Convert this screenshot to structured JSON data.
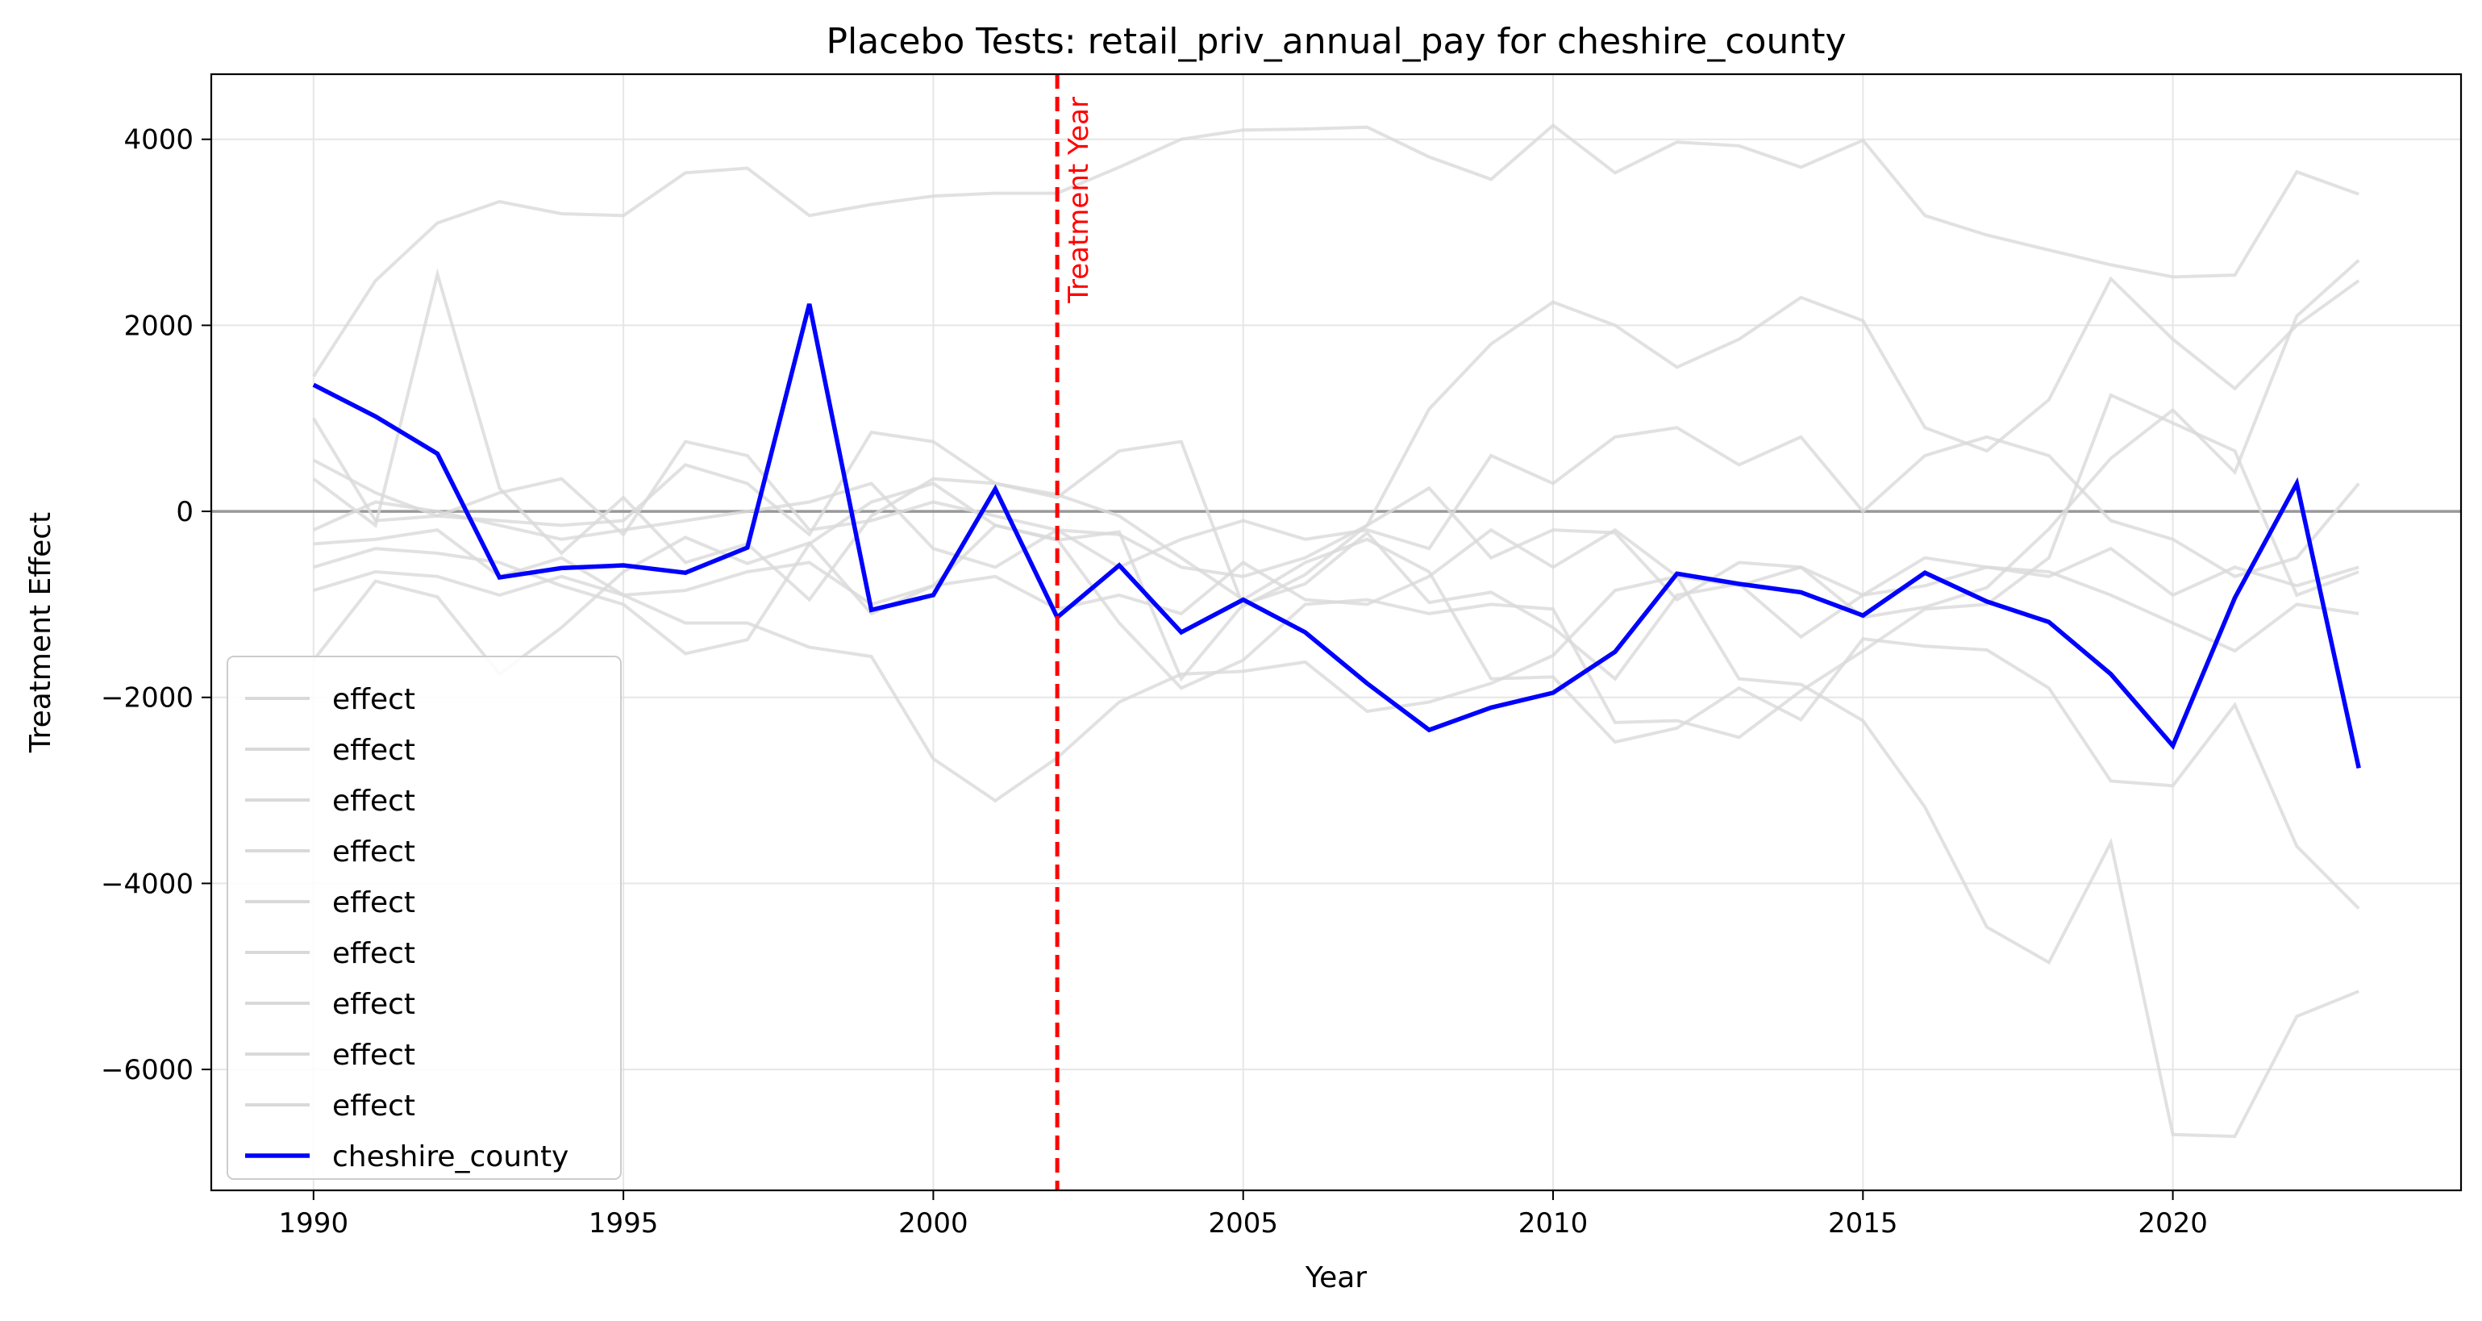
{
  "chart_data": {
    "type": "line",
    "title": "Placebo Tests: retail_priv_annual_pay for cheshire_county",
    "xlabel": "Year",
    "ylabel": "Treatment Effect",
    "xlim": [
      1988.35,
      2024.65
    ],
    "ylim": [
      -7300,
      4700
    ],
    "xticks": [
      1990,
      1995,
      2000,
      2005,
      2010,
      2015,
      2020
    ],
    "yticks": [
      -6000,
      -4000,
      -2000,
      0,
      2000,
      4000
    ],
    "grid": true,
    "legend_position": "lower-left",
    "x": [
      1990,
      1991,
      1992,
      1993,
      1994,
      1995,
      1996,
      1997,
      1998,
      1999,
      2000,
      2001,
      2002,
      2003,
      2004,
      2005,
      2006,
      2007,
      2008,
      2009,
      2010,
      2011,
      2012,
      2013,
      2014,
      2015,
      2016,
      2017,
      2018,
      2019,
      2020,
      2021,
      2022,
      2023
    ],
    "zero_line": 0,
    "treatment_year": 2002,
    "treatment_label": "Treatment Year",
    "colors": {
      "placebo": "#d9d9d9",
      "focus": "#0000ff",
      "treatment": "#ff0000",
      "zero": "#999999"
    },
    "series": [
      {
        "name": "effect",
        "values": [
          1450,
          2480,
          3100,
          3330,
          3200,
          3180,
          3640,
          3690,
          3180,
          3300,
          3390,
          3420,
          3420,
          3700,
          4000,
          4100,
          4110,
          4130,
          3810,
          3570,
          4150,
          3640,
          3970,
          3930,
          3700,
          3990,
          3180,
          2970,
          2810,
          2650,
          2520,
          2540,
          3650,
          3410
        ]
      },
      {
        "name": "effect",
        "values": [
          -850,
          -650,
          -700,
          -900,
          -700,
          -900,
          -1200,
          -1200,
          -1460,
          -1560,
          -2660,
          -3110,
          -2650,
          -2050,
          -1750,
          -1720,
          -1620,
          -2150,
          -2050,
          -1850,
          -1550,
          -850,
          -700,
          -1800,
          -1860,
          -2250,
          -3180,
          -4470,
          -4850,
          -3560,
          -6700,
          -6720,
          -5430,
          -5160
        ]
      },
      {
        "name": "effect",
        "values": [
          350,
          -150,
          2550,
          250,
          -450,
          150,
          -550,
          -350,
          -950,
          -50,
          350,
          300,
          180,
          -50,
          -500,
          -950,
          -550,
          -300,
          -650,
          -1800,
          -1780,
          -2480,
          -2330,
          -1900,
          -2240,
          -1370,
          -1450,
          -1490,
          -1900,
          -2900,
          -2950,
          -2080,
          -3600,
          -4270
        ]
      },
      {
        "name": "effect",
        "values": [
          550,
          200,
          -50,
          -100,
          -150,
          -100,
          500,
          300,
          -250,
          850,
          750,
          300,
          150,
          650,
          750,
          -1020,
          -680,
          -150,
          250,
          -500,
          -200,
          -230,
          -950,
          -550,
          -600,
          -1140,
          -1030,
          -820,
          -190,
          570,
          1090,
          420,
          2100,
          2700
        ]
      },
      {
        "name": "effect",
        "values": [
          -600,
          -400,
          -450,
          -550,
          -800,
          -1000,
          -1530,
          -1380,
          -350,
          100,
          300,
          -150,
          -300,
          -1200,
          -1900,
          -1600,
          -1000,
          -950,
          -1100,
          -1000,
          -1050,
          -2270,
          -2250,
          -2430,
          -1930,
          -1500,
          -1050,
          -1000,
          -500,
          1250,
          950,
          650,
          -900,
          -650
        ]
      },
      {
        "name": "effect",
        "values": [
          -350,
          -300,
          -200,
          -700,
          -500,
          -900,
          -850,
          -650,
          -550,
          -1000,
          -800,
          -700,
          -1050,
          -900,
          -1100,
          -550,
          -950,
          -1000,
          -700,
          -200,
          -600,
          -200,
          -700,
          -800,
          -600,
          -900,
          -500,
          -600,
          -700,
          -400,
          -900,
          -600,
          -800,
          -600
        ]
      },
      {
        "name": "effect",
        "values": [
          -1600,
          -750,
          -920,
          -1750,
          -1250,
          -650,
          -280,
          -560,
          -340,
          -1100,
          -800,
          -150,
          -310,
          -220,
          -1800,
          -1000,
          -780,
          -230,
          -980,
          -870,
          -1250,
          -1800,
          -900,
          -780,
          -1350,
          -900,
          -800,
          -600,
          -650,
          -900,
          -1200,
          -1500,
          -1000,
          -1100
        ]
      },
      {
        "name": "effect",
        "values": [
          1000,
          -100,
          -50,
          200,
          350,
          -250,
          750,
          600,
          -200,
          -100,
          100,
          -50,
          -200,
          -250,
          -600,
          -700,
          -500,
          -150,
          1100,
          1800,
          2250,
          2000,
          1550,
          1850,
          2300,
          2050,
          900,
          650,
          1200,
          2500,
          1850,
          1320,
          2000,
          2480
        ]
      },
      {
        "name": "effect",
        "values": [
          -200,
          100,
          0,
          -150,
          -300,
          -200,
          -100,
          0,
          100,
          300,
          -400,
          -600,
          -200,
          -600,
          -300,
          -100,
          -300,
          -200,
          -400,
          600,
          300,
          800,
          900,
          500,
          800,
          0,
          600,
          800,
          600,
          -100,
          -300,
          -700,
          -500,
          300
        ]
      },
      {
        "name": "cheshire_county",
        "values": [
          1360,
          1020,
          620,
          -710,
          -610,
          -580,
          -660,
          -390,
          2230,
          -1060,
          -900,
          240,
          -1140,
          -580,
          -1300,
          -950,
          -1300,
          -1850,
          -2350,
          -2110,
          -1950,
          -1510,
          -670,
          -780,
          -870,
          -1120,
          -660,
          -970,
          -1190,
          -1750,
          -2520,
          -930,
          300,
          -2760
        ]
      }
    ]
  }
}
